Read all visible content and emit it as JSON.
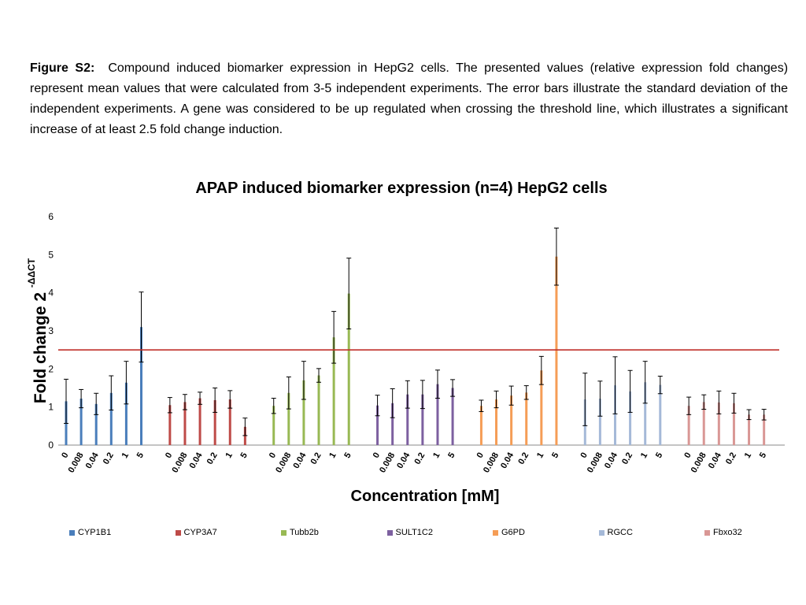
{
  "caption": {
    "label": "Figure S2:",
    "text": "Compound induced biomarker expression in HepG2 cells. The presented values (relative expression fold changes) represent mean values that were calculated from 3-5 independent experiments. The error bars illustrate the standard deviation of the independent experiments. A gene was considered to be up regulated when crossing the threshold line, which illustrates a significant increase of at least 2.5 fold change induction."
  },
  "chart_data": {
    "type": "bar",
    "title": "APAP induced biomarker expression (n=4) HepG2 cells",
    "ylabel": "Fold change 2",
    "ylabel_sup": "-ΔΔCT",
    "xlabel": "Concentration [mM]",
    "ylim": [
      0,
      6
    ],
    "yticks": [
      "0",
      "1",
      "2",
      "3",
      "4",
      "5",
      "6"
    ],
    "grid": false,
    "legend_position": "bottom",
    "threshold": 2.5,
    "threshold_color": "#C0302A",
    "categories": [
      "0",
      "0.008",
      "0.04",
      "0.2",
      "1",
      "5"
    ],
    "series": [
      {
        "name": "CYP1B1",
        "color": "#4A7EBB",
        "values": [
          1.15,
          1.22,
          1.08,
          1.37,
          1.64,
          3.1
        ],
        "errors": [
          0.58,
          0.24,
          0.28,
          0.45,
          0.56,
          0.92
        ]
      },
      {
        "name": "CYP3A7",
        "color": "#BE4B48",
        "values": [
          1.05,
          1.13,
          1.23,
          1.18,
          1.2,
          0.48
        ],
        "errors": [
          0.2,
          0.2,
          0.16,
          0.32,
          0.23,
          0.23
        ]
      },
      {
        "name": "Tubb2b",
        "color": "#98B954",
        "values": [
          1.03,
          1.37,
          1.7,
          1.83,
          2.83,
          3.98
        ],
        "errors": [
          0.2,
          0.42,
          0.5,
          0.18,
          0.68,
          0.93
        ]
      },
      {
        "name": "SULT1C2",
        "color": "#7D60A0",
        "values": [
          1.04,
          1.1,
          1.33,
          1.33,
          1.6,
          1.5
        ],
        "errors": [
          0.27,
          0.38,
          0.36,
          0.37,
          0.37,
          0.22
        ]
      },
      {
        "name": "G6PD",
        "color": "#F59D56",
        "values": [
          1.03,
          1.2,
          1.3,
          1.38,
          1.96,
          4.95
        ],
        "errors": [
          0.15,
          0.22,
          0.25,
          0.18,
          0.37,
          0.75
        ]
      },
      {
        "name": "RGCC",
        "color": "#A5B9D8",
        "values": [
          1.2,
          1.22,
          1.57,
          1.41,
          1.65,
          1.58
        ],
        "errors": [
          0.69,
          0.46,
          0.75,
          0.55,
          0.55,
          0.23
        ]
      },
      {
        "name": "Fbxo32",
        "color": "#D99795",
        "values": [
          1.03,
          1.13,
          1.12,
          1.1,
          0.8,
          0.8
        ],
        "errors": [
          0.23,
          0.19,
          0.3,
          0.26,
          0.13,
          0.14
        ]
      }
    ]
  }
}
